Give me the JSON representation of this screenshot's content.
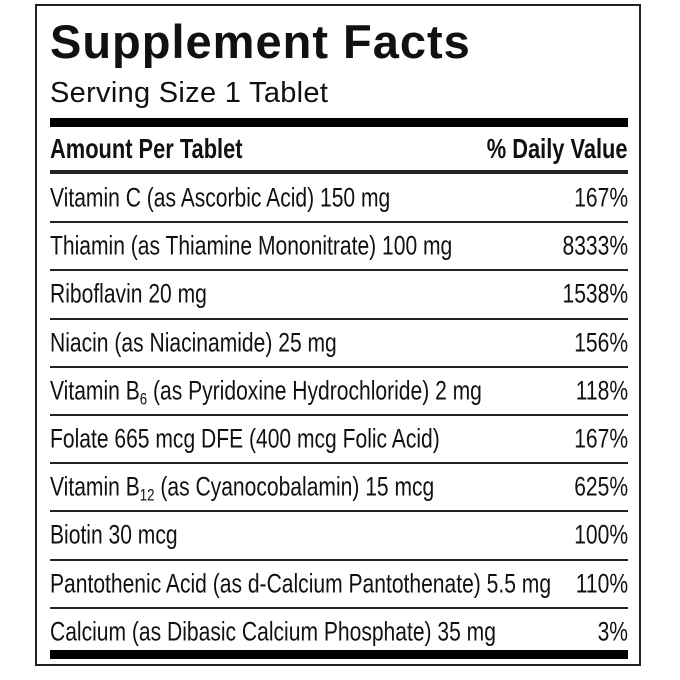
{
  "title": "Supplement Facts",
  "serving_size": "Serving Size 1 Tablet",
  "header": {
    "amount": "Amount Per Tablet",
    "dv": "% Daily Value"
  },
  "rows": [
    {
      "name": "Vitamin C (as Ascorbic Acid)  150 mg",
      "dv": "167%"
    },
    {
      "name": "Thiamin (as Thiamine Mononitrate)  100 mg",
      "dv": "8333%"
    },
    {
      "name": "Riboflavin  20 mg",
      "dv": "1538%"
    },
    {
      "name": "Niacin (as Niacinamide)  25 mg",
      "dv": "156%"
    },
    {
      "name": "Vitamin B",
      "sub": "6",
      "rest": " (as Pyridoxine Hydrochloride)  2 mg",
      "dv": "118%"
    },
    {
      "name": "Folate  665 mcg DFE (400 mcg Folic Acid)",
      "dv": "167%"
    },
    {
      "name": "Vitamin B",
      "sub": "12",
      "rest": " (as Cyanocobalamin)  15 mcg",
      "dv": "625%"
    },
    {
      "name": "Biotin  30 mcg",
      "dv": "100%"
    },
    {
      "name": "Pantothenic Acid (as d-Calcium Pantothenate)  5.5 mg",
      "dv": "110%"
    },
    {
      "name": "Calcium (as Dibasic Calcium Phosphate)  35 mg",
      "dv": "3%"
    }
  ]
}
